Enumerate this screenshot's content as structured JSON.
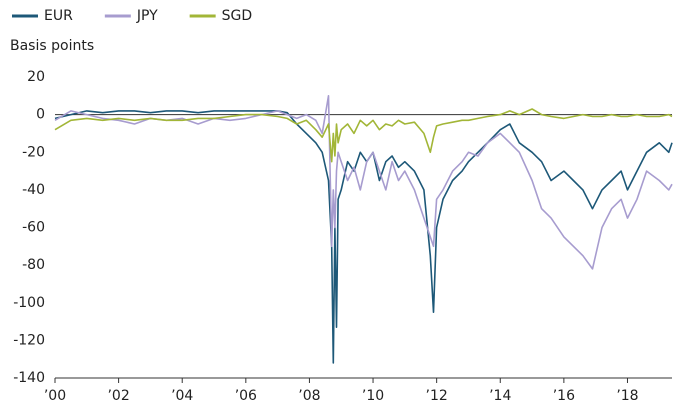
{
  "chart_data": {
    "type": "line",
    "y_label": "Basis points",
    "x": [
      2000,
      2000.5,
      2001,
      2001.5,
      2002,
      2002.5,
      2003,
      2003.5,
      2004,
      2004.5,
      2005,
      2005.5,
      2006,
      2006.5,
      2007,
      2007.3,
      2007.6,
      2007.9,
      2008.2,
      2008.4,
      2008.6,
      2008.7,
      2008.75,
      2008.8,
      2008.85,
      2008.9,
      2009.0,
      2009.2,
      2009.4,
      2009.6,
      2009.8,
      2010.0,
      2010.2,
      2010.4,
      2010.6,
      2010.8,
      2011.0,
      2011.3,
      2011.6,
      2011.8,
      2011.9,
      2012.0,
      2012.2,
      2012.5,
      2012.8,
      2013.0,
      2013.3,
      2013.6,
      2014.0,
      2014.3,
      2014.6,
      2015.0,
      2015.3,
      2015.6,
      2016.0,
      2016.3,
      2016.6,
      2016.9,
      2017.2,
      2017.5,
      2017.8,
      2018.0,
      2018.3,
      2018.6,
      2019.0,
      2019.3,
      2019.4
    ],
    "series": [
      {
        "name": "EUR",
        "color": "#1d5878",
        "values": [
          -2,
          0,
          2,
          1,
          2,
          2,
          1,
          2,
          2,
          1,
          2,
          2,
          2,
          2,
          2,
          1,
          -5,
          -10,
          -15,
          -20,
          -35,
          -70,
          -132,
          -60,
          -113,
          -45,
          -40,
          -25,
          -30,
          -20,
          -25,
          -20,
          -35,
          -25,
          -22,
          -28,
          -25,
          -30,
          -40,
          -75,
          -105,
          -60,
          -45,
          -35,
          -30,
          -25,
          -20,
          -15,
          -8,
          -5,
          -15,
          -20,
          -25,
          -35,
          -30,
          -35,
          -40,
          -50,
          -40,
          -35,
          -30,
          -40,
          -30,
          -20,
          -15,
          -20,
          -15
        ]
      },
      {
        "name": "JPY",
        "color": "#a79ccf",
        "values": [
          -3,
          2,
          0,
          -2,
          -3,
          -5,
          -2,
          -3,
          -2,
          -5,
          -2,
          -3,
          -2,
          0,
          2,
          0,
          -2,
          0,
          -3,
          -10,
          10,
          -70,
          -40,
          -60,
          -30,
          -20,
          -25,
          -35,
          -28,
          -40,
          -25,
          -20,
          -30,
          -40,
          -25,
          -35,
          -30,
          -40,
          -55,
          -65,
          -70,
          -45,
          -40,
          -30,
          -25,
          -20,
          -22,
          -15,
          -10,
          -15,
          -20,
          -35,
          -50,
          -55,
          -65,
          -70,
          -75,
          -82,
          -60,
          -50,
          -45,
          -55,
          -45,
          -30,
          -35,
          -40,
          -37
        ]
      },
      {
        "name": "SGD",
        "color": "#a2b637",
        "values": [
          -8,
          -3,
          -2,
          -3,
          -2,
          -3,
          -2,
          -3,
          -3,
          -2,
          -2,
          -1,
          0,
          0,
          -1,
          -2,
          -5,
          -3,
          -8,
          -12,
          -5,
          -25,
          -10,
          -22,
          -5,
          -15,
          -8,
          -5,
          -10,
          -3,
          -6,
          -3,
          -8,
          -5,
          -6,
          -3,
          -5,
          -4,
          -10,
          -20,
          -12,
          -6,
          -5,
          -4,
          -3,
          -3,
          -2,
          -1,
          0,
          2,
          0,
          3,
          0,
          -1,
          -2,
          -1,
          0,
          -1,
          -1,
          0,
          -1,
          -1,
          0,
          -1,
          -1,
          0,
          -1
        ]
      }
    ],
    "xlim": [
      2000,
      2019.4
    ],
    "xticks": [
      {
        "value": 2000,
        "label": "’00"
      },
      {
        "value": 2002,
        "label": "’02"
      },
      {
        "value": 2004,
        "label": "’04"
      },
      {
        "value": 2006,
        "label": "’06"
      },
      {
        "value": 2008,
        "label": "’08"
      },
      {
        "value": 2010,
        "label": "’10"
      },
      {
        "value": 2012,
        "label": "’12"
      },
      {
        "value": 2014,
        "label": "’14"
      },
      {
        "value": 2016,
        "label": "’16"
      },
      {
        "value": 2018,
        "label": "’18"
      }
    ],
    "ylim": [
      -140,
      20
    ],
    "yticks": [
      -140,
      -120,
      -100,
      -80,
      -60,
      -40,
      -20,
      0,
      20
    ],
    "legend": "top-left"
  }
}
